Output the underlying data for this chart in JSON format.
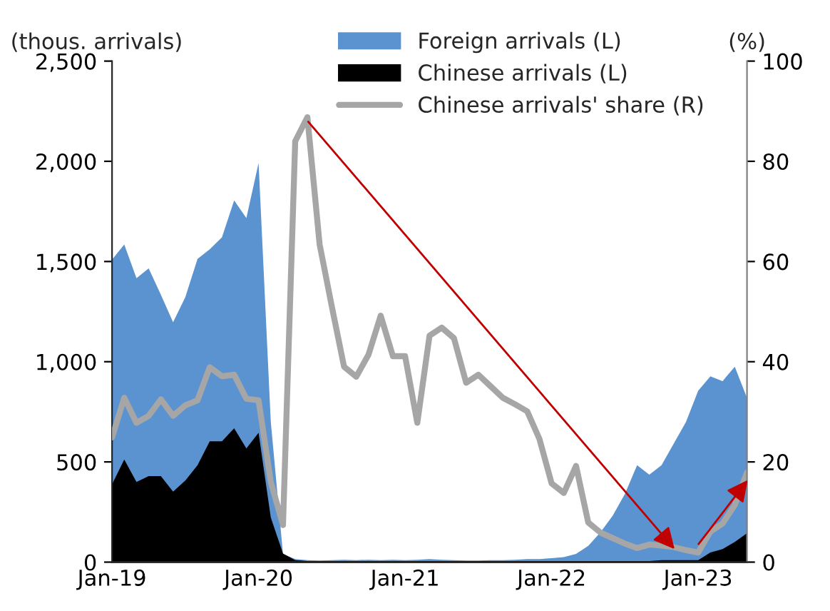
{
  "chart_data": {
    "type": "area",
    "ylabel": "(thous. arrivals)",
    "y2label": "(%)",
    "categories": [
      "Jan-19",
      null,
      null,
      null,
      null,
      null,
      null,
      null,
      null,
      null,
      null,
      null,
      "Jan-20",
      null,
      null,
      null,
      null,
      null,
      null,
      null,
      null,
      null,
      null,
      null,
      "Jan-21",
      null,
      null,
      null,
      null,
      null,
      null,
      null,
      null,
      null,
      null,
      null,
      "Jan-22",
      null,
      null,
      null,
      null,
      null,
      null,
      null,
      null,
      null,
      null,
      null,
      "Jan-23",
      null,
      null,
      null,
      null
    ],
    "series": [
      {
        "name": "Foreign arrivals (L)",
        "color": "#5b93d0",
        "values": [
          1509,
          1585,
          1417,
          1466,
          1334,
          1197,
          1322,
          1513,
          1561,
          1621,
          1805,
          1717,
          1992,
          700,
          40,
          15,
          10,
          8,
          10,
          12,
          10,
          12,
          10,
          12,
          10,
          12,
          15,
          12,
          10,
          8,
          8,
          10,
          10,
          12,
          15,
          15,
          20,
          25,
          41,
          81,
          149,
          232,
          340,
          484,
          436,
          484,
          591,
          699,
          855,
          927,
          903,
          975,
          819
        ]
      },
      {
        "name": "Chinese arrivals (L)",
        "color": "#000000",
        "values": [
          388,
          512,
          400,
          429,
          429,
          352,
          407,
          484,
          603,
          603,
          668,
          567,
          646,
          223,
          43,
          10,
          5,
          5,
          5,
          5,
          5,
          5,
          5,
          5,
          5,
          5,
          5,
          5,
          5,
          5,
          5,
          5,
          5,
          5,
          5,
          5,
          5,
          5,
          5,
          5,
          5,
          5,
          5,
          5,
          5,
          10,
          10,
          10,
          10,
          48,
          65,
          101,
          144
        ]
      },
      {
        "name": "Chinese arrivals' share (R)",
        "type": "line",
        "axis": "y2",
        "color": "#a6a6a6",
        "values": [
          24.9,
          32.8,
          27.8,
          29.2,
          32.5,
          29.2,
          31.3,
          32.3,
          38.9,
          37.1,
          37.4,
          32.6,
          32.3,
          16,
          7.4,
          84,
          88.8,
          63.4,
          51,
          39,
          37,
          41.4,
          49.2,
          41.1,
          41.1,
          27.8,
          45.2,
          46.8,
          44.7,
          35.8,
          37.4,
          35.1,
          32.8,
          31.5,
          30.1,
          24.6,
          15.7,
          13.8,
          19.2,
          7.9,
          5.9,
          4.8,
          3.7,
          2.8,
          3.5,
          3.3,
          3.0,
          2.4,
          1.9,
          6.1,
          7.7,
          11.4,
          17.9
        ]
      }
    ],
    "ylim": [
      0,
      2500
    ],
    "yticks": [
      0,
      500,
      {
        "value": 1000,
        "label": "1,000"
      },
      {
        "value": 1500,
        "label": "1,500"
      },
      {
        "value": 2000,
        "label": "2,000"
      },
      {
        "value": 2500,
        "label": "2,500"
      }
    ],
    "y2lim": [
      0,
      100
    ],
    "y2ticks": [
      0,
      20,
      40,
      60,
      80,
      100
    ],
    "legend": "top right",
    "grid": false
  }
}
